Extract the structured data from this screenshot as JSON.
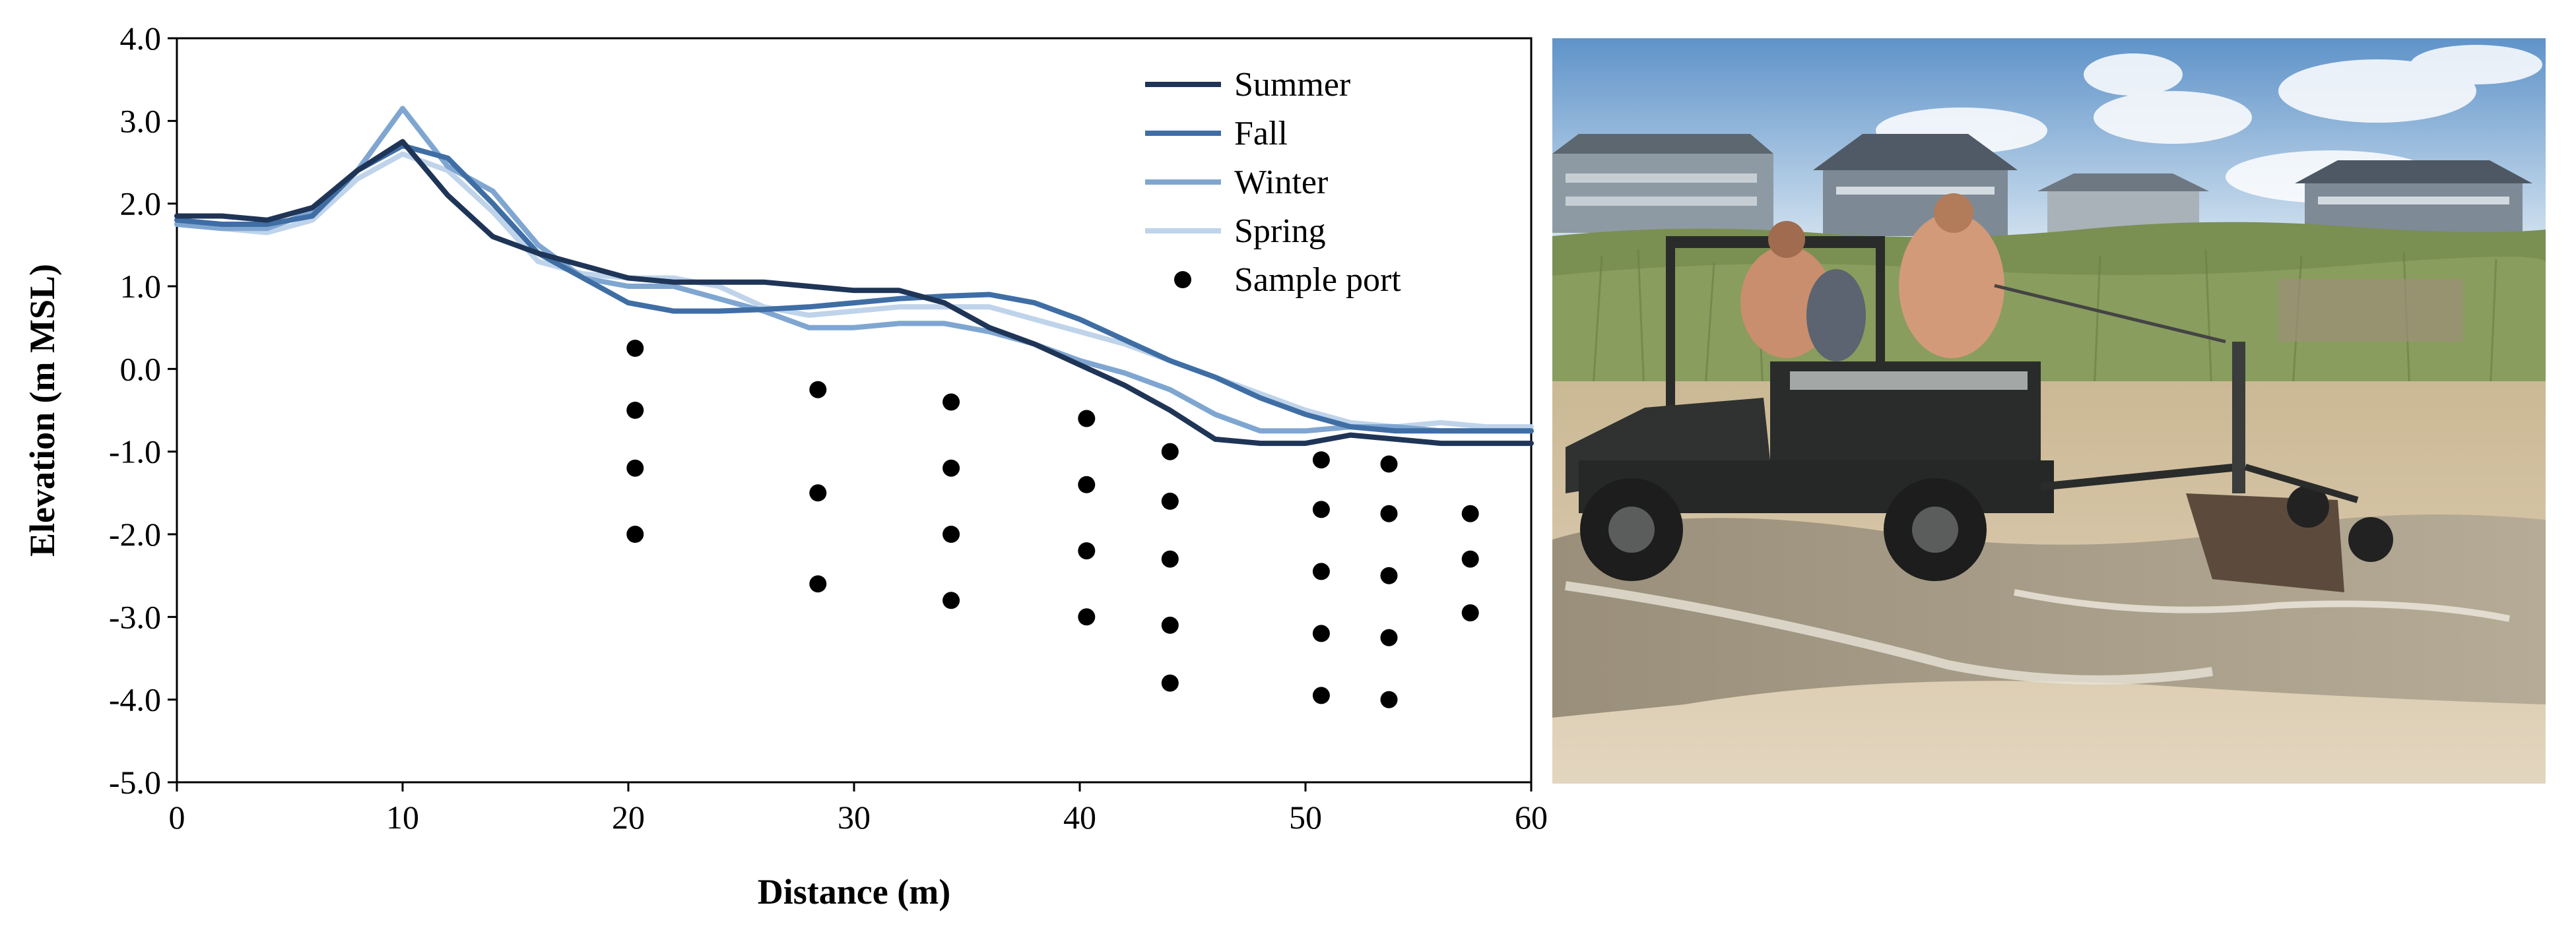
{
  "chart_data": {
    "type": "line",
    "xlabel": "Distance (m)",
    "ylabel": "Elevation (m MSL)",
    "xlim": [
      0,
      60
    ],
    "ylim": [
      -5,
      4
    ],
    "xticks": [
      "0",
      "10",
      "20",
      "30",
      "40",
      "50",
      "60"
    ],
    "yticks": [
      "-5.0",
      "-4.0",
      "-3.0",
      "-2.0",
      "-1.0",
      "0.0",
      "1.0",
      "2.0",
      "3.0",
      "4.0"
    ],
    "grid": false,
    "legend_position": "top-right",
    "series": [
      {
        "name": "Summer",
        "color": "#1f3557",
        "kind": "line",
        "x": [
          0,
          2,
          4,
          6,
          8,
          10,
          12,
          14,
          16,
          18,
          20,
          22,
          24,
          26,
          28,
          30,
          32,
          34,
          36,
          38,
          40,
          42,
          44,
          46,
          48,
          50,
          52,
          54,
          56,
          58,
          60
        ],
        "y": [
          1.85,
          1.85,
          1.8,
          1.95,
          2.4,
          2.75,
          2.1,
          1.6,
          1.4,
          1.25,
          1.1,
          1.05,
          1.05,
          1.05,
          1.0,
          0.95,
          0.95,
          0.8,
          0.5,
          0.3,
          0.05,
          -0.2,
          -0.5,
          -0.85,
          -0.9,
          -0.9,
          -0.8,
          -0.85,
          -0.9,
          -0.9,
          -0.9
        ]
      },
      {
        "name": "Fall",
        "color": "#3f6ea5",
        "kind": "line",
        "x": [
          0,
          2,
          4,
          6,
          8,
          10,
          12,
          14,
          16,
          18,
          20,
          22,
          24,
          26,
          28,
          30,
          32,
          34,
          36,
          38,
          40,
          42,
          44,
          46,
          48,
          50,
          52,
          54,
          56,
          58,
          60
        ],
        "y": [
          1.8,
          1.75,
          1.75,
          1.85,
          2.4,
          2.7,
          2.55,
          2.0,
          1.4,
          1.1,
          0.8,
          0.7,
          0.7,
          0.72,
          0.75,
          0.8,
          0.85,
          0.88,
          0.9,
          0.8,
          0.6,
          0.35,
          0.1,
          -0.1,
          -0.35,
          -0.55,
          -0.7,
          -0.75,
          -0.75,
          -0.75,
          -0.75
        ]
      },
      {
        "name": "Winter",
        "color": "#7fa6d1",
        "kind": "line",
        "x": [
          0,
          2,
          4,
          6,
          8,
          10,
          12,
          14,
          16,
          18,
          20,
          22,
          24,
          26,
          28,
          30,
          32,
          34,
          36,
          38,
          40,
          42,
          44,
          46,
          48,
          50,
          52,
          54,
          56,
          58,
          60
        ],
        "y": [
          1.75,
          1.7,
          1.7,
          1.9,
          2.4,
          3.15,
          2.45,
          2.15,
          1.5,
          1.1,
          1.0,
          1.0,
          0.85,
          0.7,
          0.5,
          0.5,
          0.55,
          0.55,
          0.45,
          0.3,
          0.1,
          -0.05,
          -0.25,
          -0.55,
          -0.75,
          -0.75,
          -0.7,
          -0.7,
          -0.75,
          -0.75,
          -0.75
        ]
      },
      {
        "name": "Spring",
        "color": "#bfd4ea",
        "kind": "line",
        "x": [
          0,
          2,
          4,
          6,
          8,
          10,
          12,
          14,
          16,
          18,
          20,
          22,
          24,
          26,
          28,
          30,
          32,
          34,
          36,
          38,
          40,
          42,
          44,
          46,
          48,
          50,
          52,
          54,
          56,
          58,
          60
        ],
        "y": [
          1.75,
          1.7,
          1.65,
          1.8,
          2.3,
          2.6,
          2.4,
          1.9,
          1.3,
          1.15,
          1.1,
          1.1,
          1.0,
          0.75,
          0.65,
          0.7,
          0.75,
          0.75,
          0.75,
          0.6,
          0.45,
          0.3,
          0.1,
          -0.1,
          -0.3,
          -0.5,
          -0.65,
          -0.7,
          -0.65,
          -0.7,
          -0.7
        ]
      },
      {
        "name": "Sample port",
        "color": "#000000",
        "kind": "scatter",
        "x": [
          20.3,
          20.3,
          20.3,
          20.3,
          28.4,
          28.4,
          28.4,
          34.3,
          34.3,
          34.3,
          34.3,
          40.3,
          40.3,
          40.3,
          40.3,
          44.0,
          44.0,
          44.0,
          44.0,
          44.0,
          50.7,
          50.7,
          50.7,
          50.7,
          50.7,
          53.7,
          53.7,
          53.7,
          53.7,
          53.7,
          57.3,
          57.3,
          57.3
        ],
        "y": [
          0.25,
          -0.5,
          -1.2,
          -2.0,
          -0.25,
          -1.5,
          -2.6,
          -0.4,
          -1.2,
          -2.0,
          -2.8,
          -0.6,
          -1.4,
          -2.2,
          -3.0,
          -1.0,
          -1.6,
          -2.3,
          -3.1,
          -3.8,
          -1.1,
          -1.7,
          -2.45,
          -3.2,
          -3.95,
          -1.15,
          -1.75,
          -2.5,
          -3.25,
          -4.0,
          -1.75,
          -2.3,
          -2.95
        ]
      }
    ]
  },
  "photo": {
    "sky_top": "#5f93c9",
    "sky_bottom": "#d9e7f2",
    "dune_grass": "#7a8f52",
    "sand": "#d9c8ab",
    "water": "#8c8270",
    "vehicle": "#2a2c2b"
  }
}
